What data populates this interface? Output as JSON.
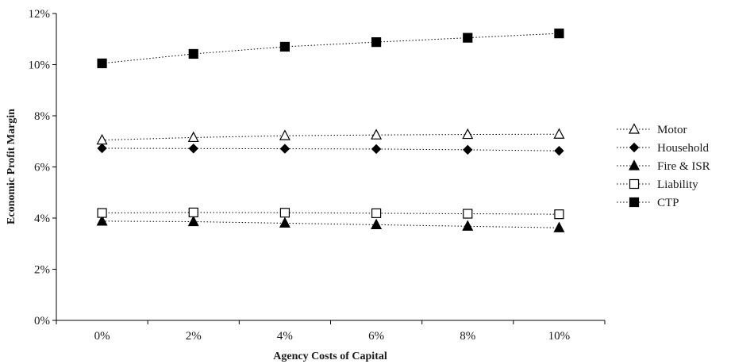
{
  "chart_data": {
    "type": "line",
    "title": "",
    "xlabel": "Agency Costs of Capital",
    "ylabel": "Economic Profit Margin",
    "categories": [
      "0%",
      "2%",
      "4%",
      "6%",
      "8%",
      "10%"
    ],
    "x": [
      0,
      2,
      4,
      6,
      8,
      10
    ],
    "ylim": [
      0,
      12
    ],
    "yticks": [
      0,
      2,
      4,
      6,
      8,
      10,
      12
    ],
    "ytick_labels": [
      "0%",
      "2%",
      "4%",
      "6%",
      "8%",
      "10%",
      "12%"
    ],
    "grid": false,
    "legend_position": "right",
    "line_style": "dotted",
    "series": [
      {
        "name": "Motor",
        "marker": "triangle-open",
        "color": "#000000",
        "values": [
          7.05,
          7.15,
          7.22,
          7.25,
          7.27,
          7.28
        ]
      },
      {
        "name": "Household",
        "marker": "diamond-filled",
        "color": "#000000",
        "values": [
          6.73,
          6.72,
          6.71,
          6.7,
          6.67,
          6.63
        ]
      },
      {
        "name": "Fire & ISR",
        "marker": "triangle-filled",
        "color": "#000000",
        "values": [
          3.88,
          3.86,
          3.8,
          3.74,
          3.68,
          3.62
        ]
      },
      {
        "name": "Liability",
        "marker": "square-open",
        "color": "#000000",
        "values": [
          4.2,
          4.22,
          4.21,
          4.19,
          4.17,
          4.15
        ]
      },
      {
        "name": "CTP",
        "marker": "square-filled",
        "color": "#000000",
        "values": [
          10.05,
          10.42,
          10.7,
          10.88,
          11.05,
          11.22
        ]
      }
    ]
  }
}
